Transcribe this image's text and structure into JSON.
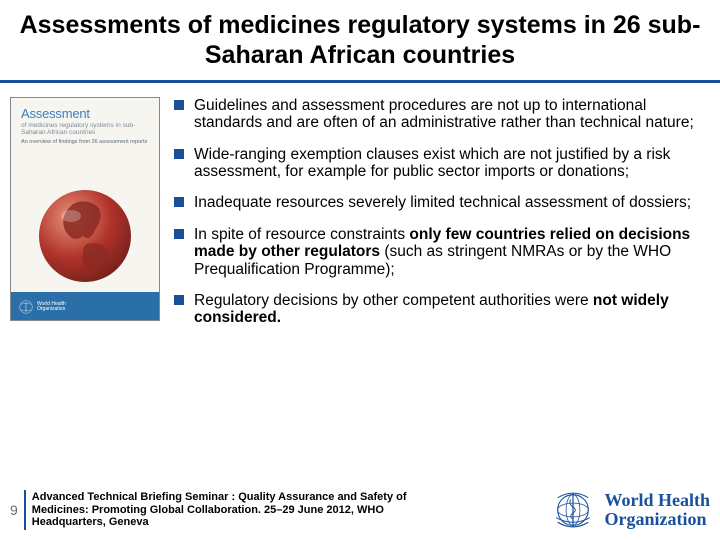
{
  "title": "Assessments of medicines regulatory systems in 26 sub-Saharan African countries",
  "cover": {
    "title": "Assessment",
    "subtitle": "of medicines regulatory systems in sub-Saharan African countries",
    "tagline": "An overview of findings from 26 assessment reports",
    "badge_l1": "World Health",
    "badge_l2": "Organization"
  },
  "bullets": [
    {
      "html": "Guidelines and assessment procedures are not up to international standards and are often of an administrative rather than technical nature;"
    },
    {
      "html": "Wide-ranging exemption clauses exist which are not justified by a risk assessment, for example for public sector imports or donations;"
    },
    {
      "html": "Inadequate resources severely limited technical assessment of dossiers;"
    },
    {
      "html": "In spite of resource constraints <b>only few countries relied on decisions made by other regulators</b> (such as stringent NMRAs or by the WHO Prequalification Programme);"
    },
    {
      "html": "Regulatory decisions by other competent authorities were <b>not widely considered.</b>"
    }
  ],
  "footer": {
    "page": "9",
    "text": "Advanced Technical Briefing Seminar : Quality Assurance and Safety of Medicines: Promoting Global Collaboration. 25–29 June 2012, WHO Headquarters, Geneva"
  },
  "who": {
    "l1": "World Health",
    "l2": "Organization"
  },
  "colors": {
    "accent": "#1a4f9c",
    "cover_band": "#2b6fa8",
    "cover_title": "#3a7fbf",
    "globe_red": "#b0322a",
    "globe_dark": "#6d1f19"
  }
}
